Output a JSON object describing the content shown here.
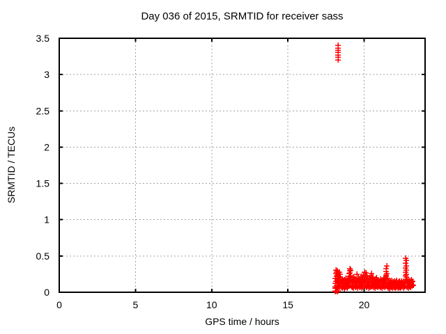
{
  "window": {
    "background": "#ffffff"
  },
  "colors": {
    "grid": "#a0a0a0",
    "axis": "#000000",
    "text": "#000000",
    "marker": "#ff0000"
  },
  "chart_data": {
    "type": "scatter",
    "title": "Day 036 of 2015, SRMTID for receiver sass",
    "xlabel": "GPS time / hours",
    "ylabel": "SRMTID / TECUs",
    "xlim": [
      0,
      24
    ],
    "ylim": [
      0,
      3.5
    ],
    "xticks": [
      0,
      5,
      10,
      15,
      20
    ],
    "yticks": [
      0,
      0.5,
      1,
      1.5,
      2,
      2.5,
      3,
      3.5
    ],
    "grid": true,
    "legend": "none",
    "marker": "plus",
    "series": [
      {
        "name": "SRMTID",
        "color": "#ff0000",
        "points": [
          [
            18.1,
            0.02
          ],
          [
            18.12,
            0.01
          ],
          [
            18.14,
            0.02
          ],
          [
            18.22,
            0.01
          ],
          [
            18.3,
            0.02
          ],
          [
            18.08,
            0.06
          ],
          [
            18.1,
            0.12
          ],
          [
            18.12,
            0.19
          ],
          [
            18.12,
            0.08
          ],
          [
            18.14,
            0.26
          ],
          [
            18.16,
            0.15
          ],
          [
            18.16,
            0.31
          ],
          [
            18.18,
            0.22
          ],
          [
            18.18,
            0.1
          ],
          [
            18.2,
            0.28
          ],
          [
            18.2,
            0.07
          ],
          [
            18.22,
            0.17
          ],
          [
            18.24,
            0.24
          ],
          [
            18.24,
            0.12
          ],
          [
            18.26,
            0.3
          ],
          [
            18.26,
            0.08
          ],
          [
            18.28,
            0.2
          ],
          [
            18.3,
            0.14
          ],
          [
            18.3,
            0.26
          ],
          [
            18.32,
            0.09
          ],
          [
            18.32,
            0.22
          ],
          [
            18.34,
            0.16
          ],
          [
            18.36,
            0.28
          ],
          [
            18.36,
            0.11
          ],
          [
            18.38,
            0.21
          ],
          [
            18.4,
            0.07
          ],
          [
            18.4,
            0.18
          ],
          [
            18.42,
            0.13
          ],
          [
            18.44,
            0.25
          ],
          [
            18.46,
            0.1
          ],
          [
            18.48,
            0.16
          ],
          [
            18.29,
            3.2
          ],
          [
            18.3,
            3.24
          ],
          [
            18.29,
            3.27
          ],
          [
            18.3,
            3.31
          ],
          [
            18.29,
            3.34
          ],
          [
            18.3,
            3.37
          ],
          [
            18.29,
            3.4
          ],
          [
            18.5,
            0.15
          ],
          [
            18.52,
            0.07
          ],
          [
            18.54,
            0.12
          ],
          [
            18.56,
            0.18
          ],
          [
            18.58,
            0.06
          ],
          [
            18.6,
            0.11
          ],
          [
            18.62,
            0.16
          ],
          [
            18.64,
            0.08
          ],
          [
            18.66,
            0.13
          ],
          [
            18.68,
            0.05
          ],
          [
            18.7,
            0.17
          ],
          [
            18.72,
            0.1
          ],
          [
            18.74,
            0.14
          ],
          [
            18.76,
            0.07
          ],
          [
            18.78,
            0.12
          ],
          [
            18.8,
            0.19
          ],
          [
            18.82,
            0.09
          ],
          [
            18.84,
            0.15
          ],
          [
            18.86,
            0.06
          ],
          [
            18.88,
            0.11
          ],
          [
            18.9,
            0.16
          ],
          [
            18.92,
            0.08
          ],
          [
            18.94,
            0.13
          ],
          [
            18.96,
            0.18
          ],
          [
            18.98,
            0.1
          ],
          [
            19.0,
            0.22
          ],
          [
            19.0,
            0.12
          ],
          [
            19.02,
            0.26
          ],
          [
            19.04,
            0.3
          ],
          [
            19.04,
            0.15
          ],
          [
            19.06,
            0.33
          ],
          [
            19.06,
            0.2
          ],
          [
            19.08,
            0.27
          ],
          [
            19.08,
            0.1
          ],
          [
            19.1,
            0.23
          ],
          [
            19.1,
            0.31
          ],
          [
            19.12,
            0.17
          ],
          [
            19.14,
            0.09
          ],
          [
            19.16,
            0.14
          ],
          [
            19.18,
            0.07
          ],
          [
            19.2,
            0.12
          ],
          [
            19.22,
            0.18
          ],
          [
            19.24,
            0.08
          ],
          [
            19.26,
            0.15
          ],
          [
            19.28,
            0.06
          ],
          [
            19.3,
            0.21
          ],
          [
            19.32,
            0.11
          ],
          [
            19.34,
            0.16
          ],
          [
            19.36,
            0.09
          ],
          [
            19.38,
            0.13
          ],
          [
            19.4,
            0.19
          ],
          [
            19.42,
            0.07
          ],
          [
            19.44,
            0.12
          ],
          [
            19.46,
            0.17
          ],
          [
            19.48,
            0.08
          ],
          [
            19.5,
            0.14
          ],
          [
            19.52,
            0.25
          ],
          [
            19.54,
            0.1
          ],
          [
            19.56,
            0.16
          ],
          [
            19.58,
            0.06
          ],
          [
            19.6,
            0.12
          ],
          [
            19.62,
            0.2
          ],
          [
            19.64,
            0.09
          ],
          [
            19.66,
            0.15
          ],
          [
            19.68,
            0.07
          ],
          [
            19.7,
            0.11
          ],
          [
            19.72,
            0.18
          ],
          [
            19.74,
            0.08
          ],
          [
            19.76,
            0.13
          ],
          [
            19.78,
            0.22
          ],
          [
            19.8,
            0.1
          ],
          [
            19.82,
            0.16
          ],
          [
            19.84,
            0.06
          ],
          [
            19.86,
            0.12
          ],
          [
            19.88,
            0.19
          ],
          [
            19.9,
            0.08
          ],
          [
            19.92,
            0.14
          ],
          [
            19.94,
            0.24
          ],
          [
            19.96,
            0.1
          ],
          [
            19.98,
            0.17
          ],
          [
            20.0,
            0.12
          ],
          [
            20.02,
            0.21
          ],
          [
            20.04,
            0.28
          ],
          [
            20.04,
            0.09
          ],
          [
            20.06,
            0.24
          ],
          [
            20.08,
            0.15
          ],
          [
            20.1,
            0.27
          ],
          [
            20.1,
            0.08
          ],
          [
            20.12,
            0.18
          ],
          [
            20.14,
            0.11
          ],
          [
            20.16,
            0.22
          ],
          [
            20.18,
            0.07
          ],
          [
            20.2,
            0.14
          ],
          [
            20.22,
            0.19
          ],
          [
            20.24,
            0.09
          ],
          [
            20.26,
            0.16
          ],
          [
            20.28,
            0.06
          ],
          [
            20.3,
            0.12
          ],
          [
            20.32,
            0.2
          ],
          [
            20.34,
            0.1
          ],
          [
            20.36,
            0.15
          ],
          [
            20.38,
            0.07
          ],
          [
            20.4,
            0.18
          ],
          [
            20.42,
            0.11
          ],
          [
            20.44,
            0.23
          ],
          [
            20.46,
            0.08
          ],
          [
            20.48,
            0.16
          ],
          [
            20.5,
            0.26
          ],
          [
            20.5,
            0.12
          ],
          [
            20.52,
            0.19
          ],
          [
            20.54,
            0.09
          ],
          [
            20.56,
            0.14
          ],
          [
            20.58,
            0.21
          ],
          [
            20.6,
            0.07
          ],
          [
            20.62,
            0.13
          ],
          [
            20.64,
            0.17
          ],
          [
            20.66,
            0.1
          ],
          [
            20.68,
            0.15
          ],
          [
            20.7,
            0.06
          ],
          [
            20.72,
            0.12
          ],
          [
            20.74,
            0.18
          ],
          [
            20.76,
            0.09
          ],
          [
            20.78,
            0.14
          ],
          [
            20.8,
            0.2
          ],
          [
            20.82,
            0.08
          ],
          [
            20.84,
            0.13
          ],
          [
            20.86,
            0.17
          ],
          [
            20.88,
            0.07
          ],
          [
            20.9,
            0.11
          ],
          [
            20.92,
            0.16
          ],
          [
            20.94,
            0.09
          ],
          [
            20.96,
            0.14
          ],
          [
            20.98,
            0.1
          ],
          [
            21.0,
            0.15
          ],
          [
            21.02,
            0.08
          ],
          [
            21.04,
            0.13
          ],
          [
            21.06,
            0.18
          ],
          [
            21.08,
            0.07
          ],
          [
            21.1,
            0.12
          ],
          [
            21.12,
            0.16
          ],
          [
            21.14,
            0.09
          ],
          [
            21.16,
            0.14
          ],
          [
            21.18,
            0.06
          ],
          [
            21.2,
            0.11
          ],
          [
            21.22,
            0.17
          ],
          [
            21.24,
            0.08
          ],
          [
            21.26,
            0.13
          ],
          [
            21.28,
            0.19
          ],
          [
            21.3,
            0.1
          ],
          [
            21.32,
            0.15
          ],
          [
            21.34,
            0.07
          ],
          [
            21.36,
            0.12
          ],
          [
            21.38,
            0.16
          ],
          [
            21.4,
            0.2
          ],
          [
            21.42,
            0.24
          ],
          [
            21.42,
            0.13
          ],
          [
            21.44,
            0.29
          ],
          [
            21.44,
            0.18
          ],
          [
            21.46,
            0.33
          ],
          [
            21.46,
            0.22
          ],
          [
            21.48,
            0.36
          ],
          [
            21.48,
            0.11
          ],
          [
            21.5,
            0.26
          ],
          [
            21.52,
            0.19
          ],
          [
            21.54,
            0.09
          ],
          [
            21.56,
            0.14
          ],
          [
            21.58,
            0.06
          ],
          [
            21.6,
            0.11
          ],
          [
            21.62,
            0.16
          ],
          [
            21.64,
            0.08
          ],
          [
            21.66,
            0.12
          ],
          [
            21.68,
            0.05
          ],
          [
            21.7,
            0.15
          ],
          [
            21.72,
            0.09
          ],
          [
            21.74,
            0.13
          ],
          [
            21.76,
            0.07
          ],
          [
            21.78,
            0.11
          ],
          [
            21.8,
            0.16
          ],
          [
            21.82,
            0.08
          ],
          [
            21.84,
            0.12
          ],
          [
            21.86,
            0.06
          ],
          [
            21.88,
            0.14
          ],
          [
            21.9,
            0.09
          ],
          [
            21.92,
            0.13
          ],
          [
            21.94,
            0.07
          ],
          [
            21.96,
            0.11
          ],
          [
            21.98,
            0.15
          ],
          [
            22.0,
            0.08
          ],
          [
            22.02,
            0.12
          ],
          [
            22.04,
            0.06
          ],
          [
            22.06,
            0.1
          ],
          [
            22.08,
            0.14
          ],
          [
            22.1,
            0.07
          ],
          [
            22.12,
            0.11
          ],
          [
            22.14,
            0.16
          ],
          [
            22.16,
            0.08
          ],
          [
            22.18,
            0.12
          ],
          [
            22.2,
            0.06
          ],
          [
            22.22,
            0.1
          ],
          [
            22.24,
            0.14
          ],
          [
            22.26,
            0.07
          ],
          [
            22.28,
            0.11
          ],
          [
            22.3,
            0.15
          ],
          [
            22.32,
            0.08
          ],
          [
            22.34,
            0.12
          ],
          [
            22.36,
            0.06
          ],
          [
            22.38,
            0.1
          ],
          [
            22.4,
            0.13
          ],
          [
            22.42,
            0.07
          ],
          [
            22.44,
            0.11
          ],
          [
            22.46,
            0.15
          ],
          [
            22.48,
            0.08
          ],
          [
            22.5,
            0.12
          ],
          [
            22.52,
            0.09
          ],
          [
            22.54,
            0.13
          ],
          [
            22.56,
            0.06
          ],
          [
            22.58,
            0.1
          ],
          [
            22.6,
            0.14
          ],
          [
            22.62,
            0.08
          ],
          [
            22.64,
            0.12
          ],
          [
            22.66,
            0.09
          ],
          [
            22.68,
            0.13
          ],
          [
            22.7,
            0.18
          ],
          [
            22.72,
            0.23
          ],
          [
            22.72,
            0.34
          ],
          [
            22.74,
            0.28
          ],
          [
            22.74,
            0.4
          ],
          [
            22.74,
            0.47
          ],
          [
            22.76,
            0.36
          ],
          [
            22.76,
            0.21
          ],
          [
            22.76,
            0.44
          ],
          [
            22.78,
            0.31
          ],
          [
            22.78,
            0.15
          ],
          [
            22.78,
            0.25
          ],
          [
            22.8,
            0.11
          ],
          [
            22.82,
            0.07
          ],
          [
            22.84,
            0.13
          ],
          [
            22.86,
            0.17
          ],
          [
            22.88,
            0.09
          ],
          [
            22.9,
            0.14
          ],
          [
            22.92,
            0.06
          ],
          [
            22.94,
            0.12
          ],
          [
            22.96,
            0.16
          ],
          [
            22.98,
            0.08
          ],
          [
            23.0,
            0.13
          ],
          [
            23.02,
            0.1
          ],
          [
            23.04,
            0.15
          ],
          [
            23.06,
            0.07
          ],
          [
            23.08,
            0.12
          ],
          [
            23.1,
            0.17
          ],
          [
            23.12,
            0.09
          ],
          [
            23.14,
            0.14
          ],
          [
            23.16,
            0.11
          ],
          [
            23.18,
            0.15
          ],
          [
            23.2,
            0.1
          ]
        ]
      }
    ]
  }
}
